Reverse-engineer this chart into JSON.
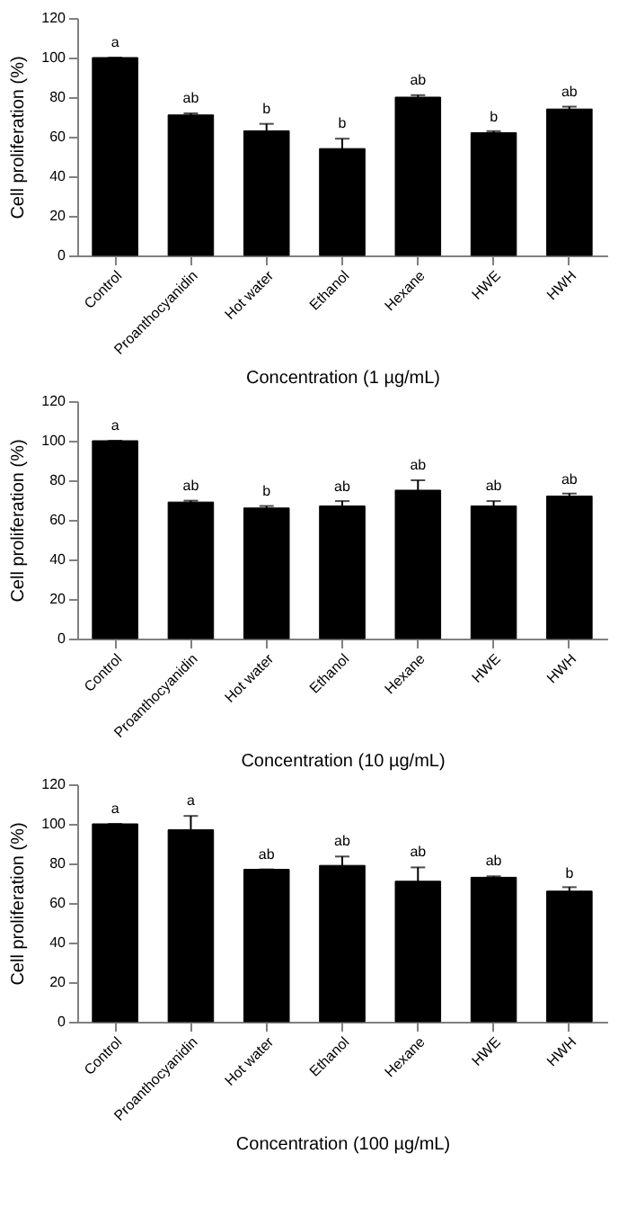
{
  "chart_data": [
    {
      "type": "bar",
      "xlabel": "Concentration (1 µg/mL)",
      "ylabel": "Cell proliferation (%)",
      "categories": [
        "Control",
        "Proanthocyanidin",
        "Hot water",
        "Ethanol",
        "Hexane",
        "HWE",
        "HWH"
      ],
      "values": [
        100,
        71,
        63,
        54,
        80,
        62,
        74
      ],
      "errors": [
        0,
        0.8,
        3.5,
        5,
        1,
        0.8,
        1.2
      ],
      "color": "#000000",
      "ylim": [
        0,
        120
      ],
      "yticks": [
        0,
        20,
        40,
        60,
        80,
        100,
        120
      ],
      "grid": false,
      "annotations": [
        {
          "text": "a",
          "x": "Control",
          "y": 100
        },
        {
          "text": "ab",
          "x": "Proanthocyanidin",
          "y": 71.8
        },
        {
          "text": "b",
          "x": "Hot water",
          "y": 66.5
        },
        {
          "text": "b",
          "x": "Ethanol",
          "y": 59
        },
        {
          "text": "ab",
          "x": "Hexane",
          "y": 81
        },
        {
          "text": "b",
          "x": "HWE",
          "y": 62.3
        },
        {
          "text": "ab",
          "x": "HWH",
          "y": 75.2
        }
      ]
    },
    {
      "type": "bar",
      "xlabel": "Concentration (10 µg/mL)",
      "ylabel": "Cell proliferation (%)",
      "categories": [
        "Control",
        "Proanthocyanidin",
        "Hot water",
        "Ethanol",
        "Hexane",
        "HWE",
        "HWH"
      ],
      "values": [
        100,
        69,
        66,
        67,
        75,
        67,
        72
      ],
      "errors": [
        0,
        0.7,
        1,
        2.5,
        5,
        2.5,
        1.3
      ],
      "color": "#000000",
      "ylim": [
        0,
        120
      ],
      "yticks": [
        0,
        20,
        40,
        60,
        80,
        100,
        120
      ],
      "grid": false,
      "annotations": [
        {
          "text": "a",
          "x": "Control",
          "y": 100
        },
        {
          "text": "ab",
          "x": "Proanthocyanidin",
          "y": 69.7
        },
        {
          "text": "b",
          "x": "Hot water",
          "y": 67
        },
        {
          "text": "ab",
          "x": "Ethanol",
          "y": 69
        },
        {
          "text": "ab",
          "x": "Hexane",
          "y": 80
        },
        {
          "text": "ab",
          "x": "HWE",
          "y": 69.5
        },
        {
          "text": "ab",
          "x": "HWH",
          "y": 72.8
        }
      ]
    },
    {
      "type": "bar",
      "xlabel": "Concentration (100 µg/mL)",
      "ylabel": "Cell proliferation (%)",
      "categories": [
        "Control",
        "Proanthocyanidin",
        "Hot water",
        "Ethanol",
        "Hexane",
        "HWE",
        "HWH"
      ],
      "values": [
        100,
        97,
        77,
        79,
        71,
        73,
        66
      ],
      "errors": [
        0,
        7,
        0,
        4.5,
        7,
        0.5,
        2
      ],
      "color": "#000000",
      "ylim": [
        0,
        120
      ],
      "yticks": [
        0,
        20,
        40,
        60,
        80,
        100,
        120
      ],
      "grid": false,
      "annotations": [
        {
          "text": "a",
          "x": "Control",
          "y": 100
        },
        {
          "text": "a",
          "x": "Proanthocyanidin",
          "y": 104
        },
        {
          "text": "ab",
          "x": "Hot water",
          "y": 77
        },
        {
          "text": "ab",
          "x": "Ethanol",
          "y": 83.5
        },
        {
          "text": "ab",
          "x": "Hexane",
          "y": 78
        },
        {
          "text": "ab",
          "x": "HWE",
          "y": 73.5
        },
        {
          "text": "b",
          "x": "HWH",
          "y": 67.5
        }
      ]
    }
  ]
}
